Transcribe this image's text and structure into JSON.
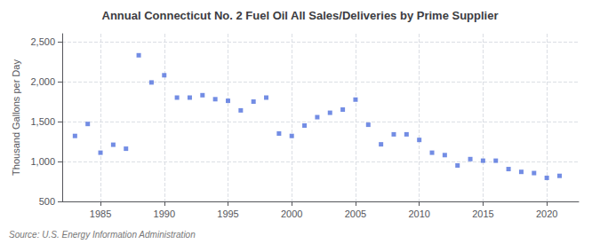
{
  "chart_data": {
    "type": "scatter",
    "title": "Annual Connecticut No. 2 Fuel Oil All Sales/Deliveries by Prime Supplier",
    "ylabel": "Thousand Gallons per Day",
    "annotation": "Source: U.S. Energy Information Administration",
    "x": [
      1983,
      1984,
      1985,
      1986,
      1987,
      1988,
      1989,
      1990,
      1991,
      1992,
      1993,
      1994,
      1995,
      1996,
      1997,
      1998,
      1999,
      2000,
      2001,
      2002,
      2003,
      2004,
      2005,
      2006,
      2007,
      2008,
      2009,
      2010,
      2011,
      2012,
      2013,
      2014,
      2015,
      2016,
      2017,
      2018,
      2019,
      2020,
      2021
    ],
    "values": [
      1320,
      1470,
      1110,
      1210,
      1160,
      2330,
      1990,
      2080,
      1800,
      1800,
      1830,
      1780,
      1760,
      1640,
      1750,
      1800,
      1350,
      1320,
      1450,
      1555,
      1610,
      1650,
      1775,
      1460,
      1215,
      1340,
      1340,
      1270,
      1110,
      1080,
      950,
      1030,
      1010,
      1010,
      905,
      870,
      855,
      795,
      820
    ],
    "xlim": [
      1982.0,
      2022.5
    ],
    "xticks": [
      1985,
      1990,
      1995,
      2000,
      2005,
      2010,
      2015,
      2020
    ],
    "ylim": [
      500,
      2600
    ],
    "yticks": [
      500,
      {
        "value": 1000,
        "label": "1,000"
      },
      {
        "value": 1500,
        "label": "1,500"
      },
      {
        "value": 2000,
        "label": "2,000"
      },
      {
        "value": 2500,
        "label": "2,500"
      }
    ],
    "grid": true
  }
}
